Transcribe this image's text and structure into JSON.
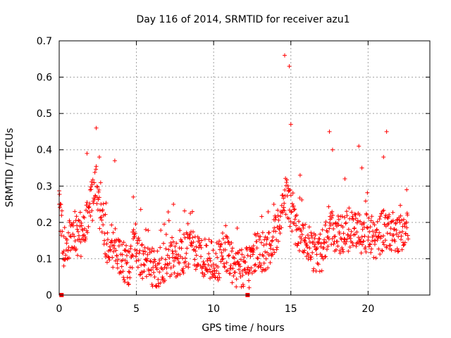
{
  "chart_data": {
    "type": "scatter",
    "title": "Day 116 of 2014, SRMTID for receiver azu1",
    "xlabel": "GPS time / hours",
    "ylabel": "SRMTID / TECUs",
    "xlim": [
      0,
      24
    ],
    "ylim": [
      0,
      0.7
    ],
    "x_ticks": [
      "0",
      "5",
      "10",
      "15",
      "20"
    ],
    "y_ticks": [
      "0",
      "0.1",
      "0.2",
      "0.3",
      "0.4",
      "0.5",
      "0.6",
      "0.7"
    ],
    "grid": true,
    "marker": "+",
    "color": "#ff0000",
    "gap_markers_x": [
      0.15,
      12.2
    ],
    "trend": [
      [
        0.0,
        0.25
      ],
      [
        0.3,
        0.13
      ],
      [
        0.6,
        0.15
      ],
      [
        1.0,
        0.16
      ],
      [
        1.5,
        0.15
      ],
      [
        1.8,
        0.22
      ],
      [
        2.1,
        0.25
      ],
      [
        2.4,
        0.3
      ],
      [
        2.7,
        0.2
      ],
      [
        3.0,
        0.15
      ],
      [
        3.4,
        0.11
      ],
      [
        3.7,
        0.14
      ],
      [
        4.0,
        0.1
      ],
      [
        4.5,
        0.08
      ],
      [
        4.9,
        0.15
      ],
      [
        5.3,
        0.1
      ],
      [
        5.8,
        0.08
      ],
      [
        6.3,
        0.07
      ],
      [
        6.8,
        0.09
      ],
      [
        7.3,
        0.11
      ],
      [
        7.8,
        0.1
      ],
      [
        8.4,
        0.13
      ],
      [
        9.0,
        0.11
      ],
      [
        9.6,
        0.1
      ],
      [
        10.2,
        0.09
      ],
      [
        10.8,
        0.11
      ],
      [
        11.3,
        0.08
      ],
      [
        11.8,
        0.07
      ],
      [
        12.3,
        0.09
      ],
      [
        12.8,
        0.12
      ],
      [
        13.3,
        0.11
      ],
      [
        13.8,
        0.15
      ],
      [
        14.3,
        0.2
      ],
      [
        14.6,
        0.28
      ],
      [
        14.9,
        0.25
      ],
      [
        15.3,
        0.18
      ],
      [
        15.8,
        0.17
      ],
      [
        16.2,
        0.14
      ],
      [
        16.6,
        0.11
      ],
      [
        17.0,
        0.12
      ],
      [
        17.5,
        0.2
      ],
      [
        18.0,
        0.16
      ],
      [
        18.5,
        0.17
      ],
      [
        19.0,
        0.18
      ],
      [
        19.5,
        0.17
      ],
      [
        20.0,
        0.16
      ],
      [
        20.5,
        0.15
      ],
      [
        21.0,
        0.18
      ],
      [
        21.5,
        0.17
      ],
      [
        22.0,
        0.16
      ],
      [
        22.6,
        0.18
      ]
    ],
    "peaks": [
      [
        2.4,
        0.46
      ],
      [
        2.6,
        0.38
      ],
      [
        3.6,
        0.37
      ],
      [
        4.8,
        0.27
      ],
      [
        7.4,
        0.25
      ],
      [
        14.6,
        0.66
      ],
      [
        14.9,
        0.63
      ],
      [
        15.0,
        0.47
      ],
      [
        17.5,
        0.45
      ],
      [
        17.7,
        0.4
      ],
      [
        19.4,
        0.41
      ],
      [
        21.2,
        0.45
      ],
      [
        21.0,
        0.38
      ],
      [
        19.6,
        0.35
      ],
      [
        15.6,
        0.33
      ],
      [
        13.9,
        0.25
      ],
      [
        4.5,
        0.03
      ],
      [
        1.8,
        0.39
      ],
      [
        18.5,
        0.32
      ],
      [
        22.5,
        0.29
      ],
      [
        0.0,
        0.25
      ],
      [
        0.3,
        0.08
      ],
      [
        12.3,
        0.02
      ]
    ]
  }
}
